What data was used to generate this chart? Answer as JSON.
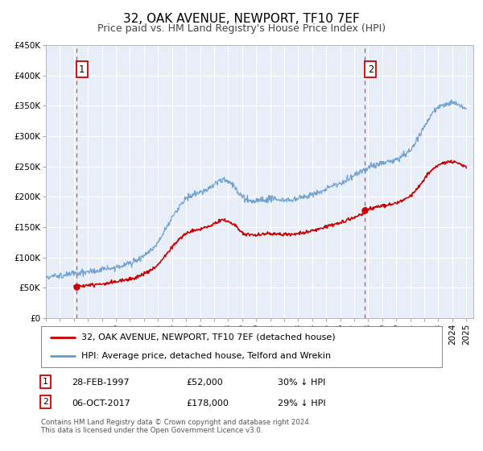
{
  "title": "32, OAK AVENUE, NEWPORT, TF10 7EF",
  "subtitle": "Price paid vs. HM Land Registry's House Price Index (HPI)",
  "ylim": [
    0,
    450000
  ],
  "xlim_start": 1995.0,
  "xlim_end": 2025.5,
  "yticks": [
    0,
    50000,
    100000,
    150000,
    200000,
    250000,
    300000,
    350000,
    400000,
    450000
  ],
  "ytick_labels": [
    "£0",
    "£50K",
    "£100K",
    "£150K",
    "£200K",
    "£250K",
    "£300K",
    "£350K",
    "£400K",
    "£450K"
  ],
  "xtick_years": [
    1995,
    1996,
    1997,
    1998,
    1999,
    2000,
    2001,
    2002,
    2003,
    2004,
    2005,
    2006,
    2007,
    2008,
    2009,
    2010,
    2011,
    2012,
    2013,
    2014,
    2015,
    2016,
    2017,
    2018,
    2019,
    2020,
    2021,
    2022,
    2023,
    2024,
    2025
  ],
  "sale1_x": 1997.16,
  "sale1_y": 52000,
  "sale1_label": "1",
  "sale1_date": "28-FEB-1997",
  "sale1_price": "£52,000",
  "sale1_hpi": "30% ↓ HPI",
  "sale2_x": 2017.76,
  "sale2_y": 178000,
  "sale2_label": "2",
  "sale2_date": "06-OCT-2017",
  "sale2_price": "£178,000",
  "sale2_hpi": "29% ↓ HPI",
  "red_line_color": "#cc0000",
  "blue_line_color": "#6699cc",
  "vline_color": "#cc0000",
  "dot_color": "#cc0000",
  "bg_color": "#e8eef8",
  "grid_color": "#c8d4e8",
  "label_box_color": "#cc0000",
  "legend1": "32, OAK AVENUE, NEWPORT, TF10 7EF (detached house)",
  "legend2": "HPI: Average price, detached house, Telford and Wrekin",
  "footer": "Contains HM Land Registry data © Crown copyright and database right 2024.\nThis data is licensed under the Open Government Licence v3.0.",
  "title_fontsize": 11,
  "subtitle_fontsize": 9,
  "tick_fontsize": 7.5,
  "legend_fontsize": 8
}
